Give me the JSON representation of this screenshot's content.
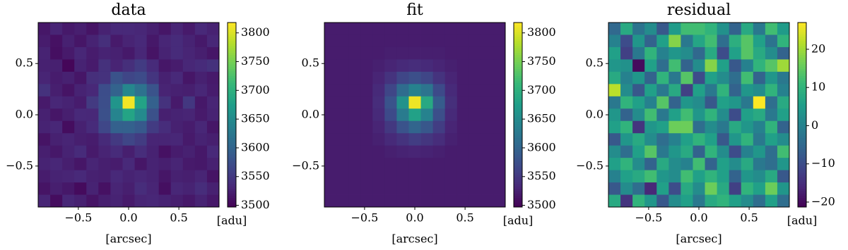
{
  "chart_data": [
    {
      "type": "heatmap",
      "title": "data",
      "xlabel": "[arcsec]",
      "colorbar_label": "[adu]",
      "xlim": [
        -0.9,
        0.9
      ],
      "ylim": [
        -0.9,
        0.9
      ],
      "xticks": [
        {
          "value": -0.5,
          "label": "−0.5"
        },
        {
          "value": 0,
          "label": "0.0"
        },
        {
          "value": 0.5,
          "label": "0.5"
        }
      ],
      "yticks": [
        {
          "value": -0.5,
          "label": "−0.5"
        },
        {
          "value": 0,
          "label": "0.0"
        },
        {
          "value": 0.5,
          "label": "0.5"
        }
      ],
      "clim": [
        3497,
        3818
      ],
      "cticks": [
        3500,
        3550,
        3600,
        3650,
        3700,
        3750,
        3800
      ],
      "colormap": [
        "#440154",
        "#482878",
        "#3e4989",
        "#31688e",
        "#26828e",
        "#1f9e89",
        "#35b779",
        "#6ece58",
        "#b5de2b",
        "#fde725"
      ],
      "z": [
        [
          3517,
          3530,
          3519,
          3524,
          3514,
          3527,
          3534,
          3534,
          3532,
          3525,
          3516,
          3530,
          3520,
          3534,
          3527
        ],
        [
          3522,
          3512,
          3526,
          3516,
          3528,
          3540,
          3520,
          3529,
          3534,
          3518,
          3531,
          3536,
          3528,
          3519,
          3532
        ],
        [
          3528,
          3510,
          3520,
          3532,
          3522,
          3528,
          3526,
          3519,
          3532,
          3514,
          3528,
          3536,
          3530,
          3524,
          3516
        ],
        [
          3526,
          3525,
          3502,
          3528,
          3521,
          3542,
          3529,
          3540,
          3553,
          3536,
          3517,
          3522,
          3532,
          3536,
          3542
        ],
        [
          3530,
          3522,
          3526,
          3516,
          3540,
          3543,
          3579,
          3565,
          3571,
          3547,
          3526,
          3534,
          3516,
          3526,
          3520
        ],
        [
          3544,
          3524,
          3514,
          3528,
          3533,
          3573,
          3598,
          3646,
          3618,
          3580,
          3529,
          3526,
          3524,
          3532,
          3522
        ],
        [
          3520,
          3532,
          3528,
          3522,
          3552,
          3574,
          3664,
          3812,
          3682,
          3596,
          3544,
          3520,
          3549,
          3518,
          3530
        ],
        [
          3526,
          3516,
          3524,
          3534,
          3533,
          3576,
          3642,
          3684,
          3650,
          3577,
          3525,
          3528,
          3530,
          3520,
          3528
        ],
        [
          3528,
          3532,
          3508,
          3526,
          3536,
          3566,
          3596,
          3596,
          3587,
          3553,
          3538,
          3526,
          3522,
          3532,
          3516
        ],
        [
          3514,
          3526,
          3530,
          3524,
          3522,
          3535,
          3551,
          3565,
          3554,
          3530,
          3530,
          3532,
          3520,
          3528,
          3524
        ],
        [
          3524,
          3518,
          3528,
          3536,
          3520,
          3529,
          3536,
          3524,
          3538,
          3527,
          3512,
          3522,
          3526,
          3518,
          3534
        ],
        [
          3528,
          3532,
          3524,
          3516,
          3530,
          3524,
          3522,
          3534,
          3516,
          3528,
          3524,
          3530,
          3520,
          3518,
          3526
        ],
        [
          3522,
          3528,
          3530,
          3534,
          3526,
          3524,
          3534,
          3528,
          3532,
          3528,
          3516,
          3526,
          3524,
          3530,
          3514
        ],
        [
          3514,
          3524,
          3518,
          3506,
          3528,
          3512,
          3530,
          3524,
          3538,
          3530,
          3510,
          3532,
          3528,
          3538,
          3526
        ],
        [
          3530,
          3508,
          3532,
          3526,
          3514,
          3524,
          3528,
          3520,
          3530,
          3532,
          3528,
          3524,
          3518,
          3528,
          3518
        ]
      ]
    },
    {
      "type": "heatmap",
      "title": "fit",
      "xlabel": "[arcsec]",
      "colorbar_label": "[adu]",
      "xlim": [
        -0.9,
        0.9
      ],
      "ylim": [
        -0.9,
        0.9
      ],
      "xticks": [
        {
          "value": -0.5,
          "label": "−0.5"
        },
        {
          "value": 0,
          "label": "0.0"
        },
        {
          "value": 0.5,
          "label": "0.5"
        }
      ],
      "yticks": [
        {
          "value": -0.5,
          "label": "−0.5"
        },
        {
          "value": 0,
          "label": "0.0"
        },
        {
          "value": 0.5,
          "label": "0.5"
        }
      ],
      "clim": [
        3497,
        3818
      ],
      "cticks": [
        3500,
        3550,
        3600,
        3650,
        3700,
        3750,
        3800
      ],
      "colormap": [
        "#440154",
        "#482878",
        "#3e4989",
        "#31688e",
        "#26828e",
        "#1f9e89",
        "#35b779",
        "#6ece58",
        "#b5de2b",
        "#fde725"
      ],
      "z": [
        [
          3522,
          3522,
          3522,
          3522,
          3522,
          3522,
          3522,
          3522,
          3522,
          3522,
          3522,
          3522,
          3522,
          3522,
          3522
        ],
        [
          3522,
          3522,
          3522,
          3522,
          3522,
          3522,
          3522,
          3522,
          3522,
          3522,
          3522,
          3522,
          3522,
          3522,
          3522
        ],
        [
          3522,
          3522,
          3522,
          3522,
          3522,
          3524,
          3524,
          3524,
          3524,
          3524,
          3522,
          3522,
          3522,
          3522,
          3522
        ],
        [
          3522,
          3522,
          3522,
          3522,
          3525,
          3530,
          3535,
          3538,
          3535,
          3530,
          3525,
          3522,
          3522,
          3522,
          3522
        ],
        [
          3522,
          3522,
          3522,
          3522,
          3530,
          3545,
          3565,
          3575,
          3565,
          3545,
          3530,
          3522,
          3522,
          3522,
          3522
        ],
        [
          3522,
          3522,
          3522,
          3522,
          3535,
          3565,
          3610,
          3640,
          3620,
          3570,
          3535,
          3522,
          3522,
          3522,
          3522
        ],
        [
          3522,
          3522,
          3522,
          3522,
          3538,
          3580,
          3660,
          3810,
          3690,
          3590,
          3540,
          3522,
          3522,
          3522,
          3522
        ],
        [
          3522,
          3522,
          3522,
          3522,
          3535,
          3570,
          3630,
          3680,
          3640,
          3575,
          3535,
          3522,
          3522,
          3522,
          3522
        ],
        [
          3522,
          3522,
          3522,
          3522,
          3530,
          3550,
          3580,
          3600,
          3585,
          3555,
          3530,
          3522,
          3522,
          3522,
          3522
        ],
        [
          3522,
          3522,
          3522,
          3522,
          3526,
          3535,
          3545,
          3555,
          3548,
          3538,
          3526,
          3522,
          3522,
          3522,
          3522
        ],
        [
          3522,
          3522,
          3522,
          3522,
          3522,
          3525,
          3528,
          3530,
          3528,
          3525,
          3522,
          3522,
          3522,
          3522,
          3522
        ],
        [
          3522,
          3522,
          3522,
          3522,
          3522,
          3522,
          3522,
          3522,
          3522,
          3522,
          3522,
          3522,
          3522,
          3522,
          3522
        ],
        [
          3522,
          3522,
          3522,
          3522,
          3522,
          3522,
          3522,
          3522,
          3522,
          3522,
          3522,
          3522,
          3522,
          3522,
          3522
        ],
        [
          3522,
          3522,
          3522,
          3522,
          3522,
          3522,
          3522,
          3522,
          3522,
          3522,
          3522,
          3522,
          3522,
          3522,
          3522
        ],
        [
          3522,
          3522,
          3522,
          3522,
          3522,
          3522,
          3522,
          3522,
          3522,
          3522,
          3522,
          3522,
          3522,
          3522,
          3522
        ]
      ]
    },
    {
      "type": "heatmap",
      "title": "residual",
      "xlabel": "[arcsec]",
      "colorbar_label": "[adu]",
      "xlim": [
        -0.9,
        0.9
      ],
      "ylim": [
        -0.9,
        0.9
      ],
      "xticks": [
        {
          "value": -0.5,
          "label": "−0.5"
        },
        {
          "value": 0,
          "label": "0.0"
        },
        {
          "value": 0.5,
          "label": "0.5"
        }
      ],
      "yticks": [
        {
          "value": -0.5,
          "label": "−0.5"
        },
        {
          "value": 0,
          "label": "0.0"
        },
        {
          "value": 0.5,
          "label": "0.5"
        }
      ],
      "clim": [
        -21.3,
        27
      ],
      "cticks": [
        {
          "value": -20,
          "label": "−20"
        },
        {
          "value": -10,
          "label": "−10"
        },
        0,
        10,
        20
      ],
      "colormap": [
        "#440154",
        "#482878",
        "#3e4989",
        "#31688e",
        "#26828e",
        "#1f9e89",
        "#35b779",
        "#6ece58",
        "#b5de2b",
        "#fde725"
      ],
      "z": [
        [
          -5,
          8,
          -3,
          2,
          -8,
          5,
          12,
          12,
          10,
          3,
          -6,
          8,
          -2,
          12,
          5
        ],
        [
          0,
          -10,
          4,
          -6,
          6,
          18,
          -2,
          7,
          12,
          -4,
          9,
          14,
          6,
          -3,
          10
        ],
        [
          6,
          -12,
          -2,
          10,
          0,
          4,
          2,
          -5,
          8,
          -10,
          6,
          14,
          8,
          2,
          -6
        ],
        [
          4,
          3,
          -20,
          6,
          -4,
          12,
          -6,
          2,
          18,
          6,
          -8,
          0,
          10,
          14,
          20
        ],
        [
          8,
          0,
          4,
          -6,
          10,
          -2,
          14,
          -10,
          6,
          2,
          -4,
          12,
          -6,
          4,
          -2
        ],
        [
          22,
          2,
          -8,
          6,
          -2,
          8,
          -12,
          6,
          -2,
          10,
          -6,
          4,
          2,
          10,
          0
        ],
        [
          -2,
          10,
          6,
          0,
          14,
          -6,
          4,
          2,
          -8,
          6,
          4,
          -2,
          27,
          -4,
          8
        ],
        [
          4,
          -6,
          2,
          12,
          -2,
          6,
          12,
          4,
          10,
          2,
          -10,
          6,
          8,
          -2,
          6
        ],
        [
          6,
          10,
          -14,
          4,
          6,
          16,
          16,
          -4,
          2,
          -2,
          8,
          4,
          0,
          10,
          -6
        ],
        [
          -8,
          4,
          8,
          2,
          -4,
          0,
          6,
          10,
          6,
          -8,
          4,
          10,
          -2,
          6,
          2
        ],
        [
          2,
          -4,
          6,
          14,
          -2,
          4,
          8,
          -6,
          10,
          2,
          -10,
          0,
          4,
          -4,
          12
        ],
        [
          6,
          10,
          2,
          -6,
          8,
          2,
          0,
          12,
          -6,
          6,
          2,
          8,
          -2,
          -4,
          4
        ],
        [
          0,
          6,
          8,
          12,
          4,
          2,
          12,
          6,
          10,
          6,
          -6,
          4,
          2,
          8,
          -8
        ],
        [
          -8,
          2,
          -4,
          -16,
          6,
          -10,
          8,
          2,
          16,
          8,
          -12,
          10,
          6,
          16,
          4
        ],
        [
          8,
          -14,
          10,
          4,
          -8,
          2,
          6,
          -2,
          8,
          10,
          6,
          2,
          -4,
          6,
          -4
        ]
      ]
    }
  ]
}
